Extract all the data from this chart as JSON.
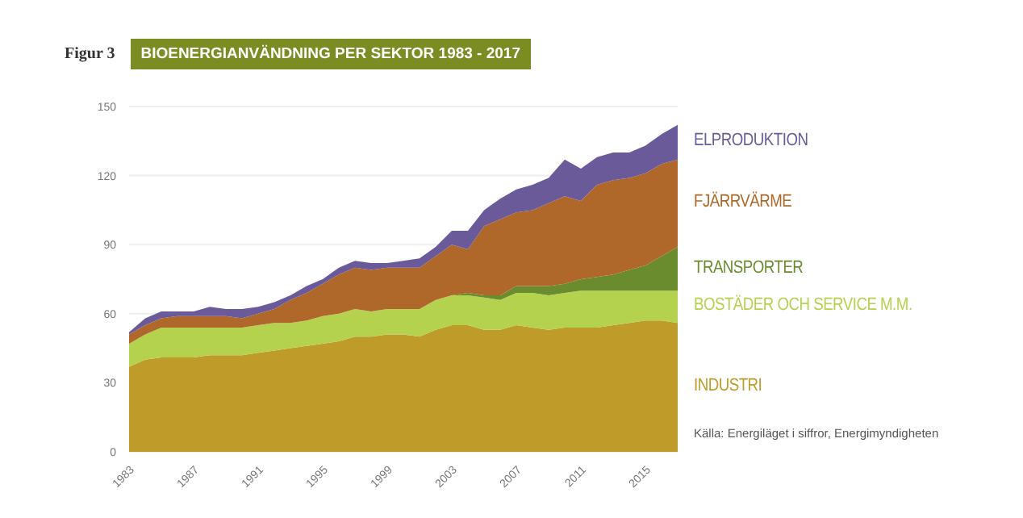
{
  "chart_data": {
    "type": "area",
    "stacked": true,
    "title": "BIOENERGIANVÄNDNING PER SEKTOR 1983 - 2017",
    "subtitle": "Figur 3",
    "x": [
      1983,
      1984,
      1985,
      1986,
      1987,
      1988,
      1989,
      1990,
      1991,
      1992,
      1993,
      1994,
      1995,
      1996,
      1997,
      1998,
      1999,
      2000,
      2001,
      2002,
      2003,
      2004,
      2005,
      2006,
      2007,
      2008,
      2009,
      2010,
      2011,
      2012,
      2013,
      2014,
      2015,
      2016,
      2017
    ],
    "series": [
      {
        "name": "INDUSTRI",
        "color": "#bf9b2a",
        "values": [
          37,
          40,
          41,
          41,
          41,
          42,
          42,
          42,
          43,
          44,
          45,
          46,
          47,
          48,
          50,
          50,
          51,
          51,
          50,
          53,
          55,
          55,
          53,
          53,
          55,
          54,
          53,
          54,
          54,
          54,
          55,
          56,
          57,
          57,
          56
        ]
      },
      {
        "name": "BOSTÄDER OCH SERVICE M.M.",
        "color": "#b5d24e",
        "values": [
          10,
          11,
          13,
          13,
          13,
          12,
          12,
          12,
          12,
          12,
          11,
          11,
          12,
          12,
          12,
          11,
          11,
          11,
          12,
          13,
          13,
          13,
          14,
          13,
          14,
          15,
          15,
          15,
          16,
          16,
          15,
          14,
          13,
          13,
          14
        ]
      },
      {
        "name": "TRANSPORTER",
        "color": "#6a8c2e",
        "values": [
          0,
          0,
          0,
          0,
          0,
          0,
          0,
          0,
          0,
          0,
          0,
          0,
          0,
          0,
          0,
          0,
          0,
          0,
          0,
          0,
          0,
          1,
          1,
          2,
          3,
          3,
          4,
          4,
          5,
          6,
          7,
          9,
          11,
          15,
          19
        ]
      },
      {
        "name": "FJÄRRVÄRME",
        "color": "#b0682a",
        "values": [
          4,
          4,
          4,
          5,
          5,
          5,
          5,
          4,
          5,
          6,
          10,
          12,
          14,
          17,
          18,
          18,
          18,
          18,
          18,
          19,
          22,
          19,
          30,
          33,
          32,
          33,
          36,
          38,
          34,
          40,
          41,
          40,
          40,
          40,
          38
        ]
      },
      {
        "name": "ELPRODUKTION",
        "color": "#6b5a9a",
        "values": [
          1,
          3,
          3,
          2,
          2,
          4,
          3,
          4,
          3,
          3,
          2,
          3,
          2,
          3,
          3,
          3,
          2,
          3,
          4,
          4,
          6,
          8,
          7,
          9,
          10,
          11,
          11,
          16,
          14,
          12,
          12,
          11,
          12,
          13,
          15
        ]
      }
    ],
    "xlim": [
      1983,
      2017
    ],
    "xticks": [
      1983,
      1987,
      1991,
      1995,
      1999,
      2003,
      2007,
      2011,
      2015
    ],
    "ylim": [
      0,
      150
    ],
    "yticks": [
      0,
      30,
      60,
      90,
      120,
      150
    ],
    "grid": "y",
    "legend": "right",
    "annotations": [
      "Källa: Energiläget i siffror, Energimyndigheten"
    ]
  }
}
